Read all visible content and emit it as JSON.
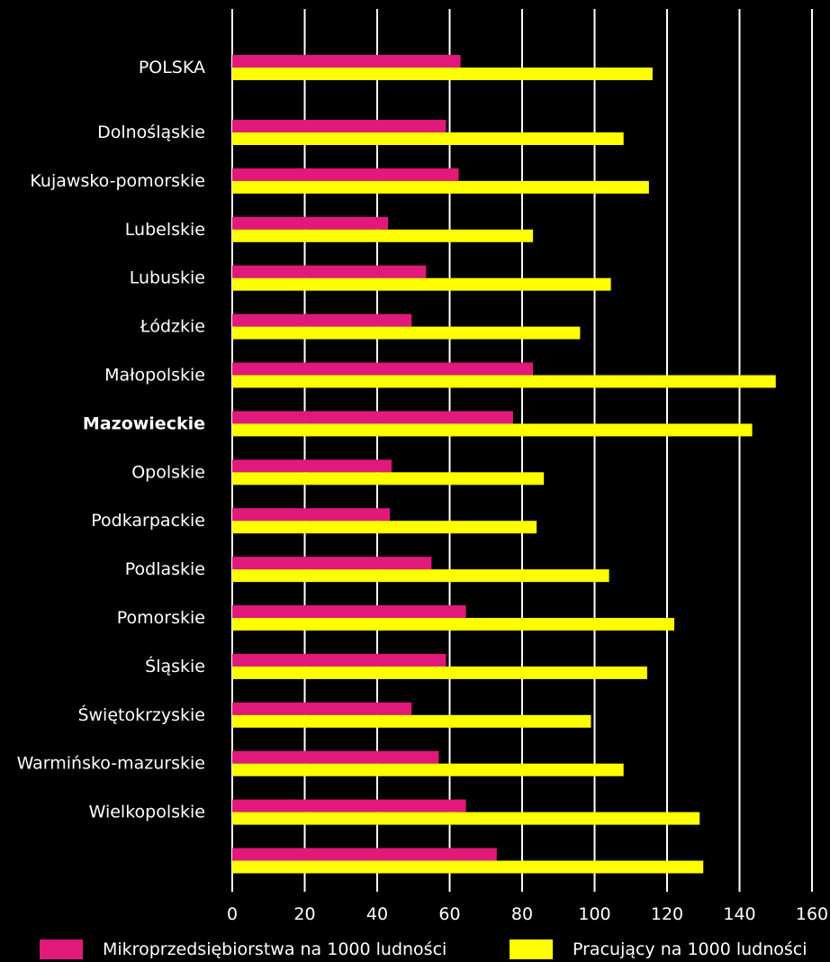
{
  "chart_data": {
    "type": "bar",
    "orientation": "horizontal",
    "xlim": [
      0,
      160
    ],
    "xticks": [
      "0",
      "20",
      "40",
      "60",
      "80",
      "100",
      "120",
      "140",
      "160"
    ],
    "grid": "vertical",
    "legend_position": "bottom",
    "categories": [
      "POLSKA",
      "Dolnośląskie",
      "Kujawsko-pomorskie",
      "Lubelskie",
      "Lubuskie",
      "Łódzkie",
      "Małopolskie",
      "Mazowieckie",
      "Opolskie",
      "Podkarpackie",
      "Podlaskie",
      "Pomorskie",
      "Śląskie",
      "Świętokrzyskie",
      "Warmińsko-mazurskie",
      "Wielkopolskie",
      ""
    ],
    "highlighted_category": "Mazowieckie",
    "series": [
      {
        "name": "Mikroprzedsiębiorstwa na 1000 ludności",
        "color": "#e0197a",
        "values": [
          63,
          59,
          62.5,
          43,
          53.5,
          49.5,
          83,
          77.5,
          44,
          43.5,
          55,
          64.5,
          59,
          49.5,
          57,
          64.5,
          73
        ]
      },
      {
        "name": "Pracujący na 1000 ludności",
        "color": "#ffff00",
        "values": [
          116,
          108,
          115,
          83,
          104.5,
          96,
          150,
          143.5,
          86,
          84,
          104,
          122,
          114.5,
          99,
          108,
          129,
          130
        ]
      }
    ]
  },
  "colors": {
    "background": "#000000",
    "text": "#ffffff",
    "grid": "#ffffff"
  }
}
